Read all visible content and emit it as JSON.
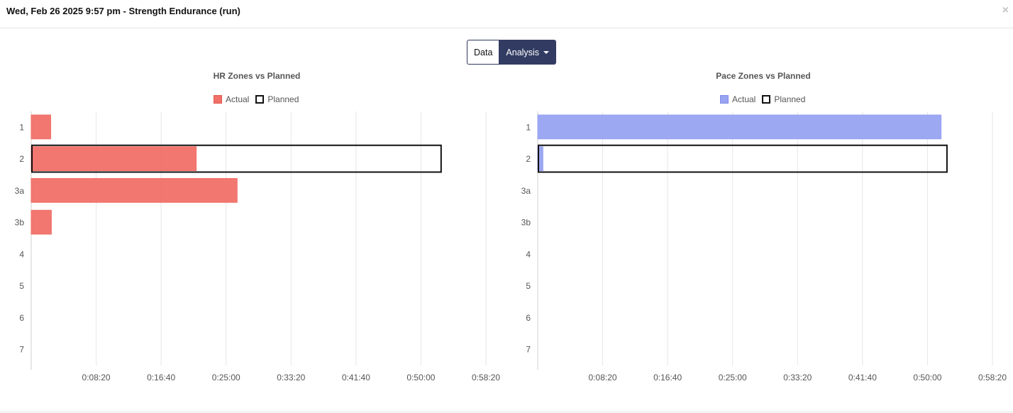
{
  "header": {
    "title": "Wed, Feb 26 2025 9:57 pm - Strength Endurance (run)"
  },
  "close_label": "×",
  "toggle": {
    "data_label": "Data",
    "analysis_label": "Analysis"
  },
  "chart_data": [
    {
      "type": "bar",
      "orientation": "horizontal",
      "title": "HR Zones vs Planned",
      "categories": [
        "1",
        "2",
        "3a",
        "3b",
        "4",
        "5",
        "6",
        "7"
      ],
      "xlim": [
        0,
        3500
      ],
      "x_ticks": [
        500,
        1000,
        1500,
        2000,
        2500,
        3000,
        3500
      ],
      "x_tick_labels": [
        "0:08:20",
        "0:16:40",
        "0:25:00",
        "0:33:20",
        "0:41:40",
        "0:50:00",
        "0:58:20"
      ],
      "legend": {
        "position": "top-center",
        "entries": [
          "Actual",
          "Planned"
        ]
      },
      "grid": true,
      "series": [
        {
          "name": "Actual",
          "color": "#f07068",
          "values": [
            150,
            1270,
            1585,
            155,
            0,
            0,
            0,
            0
          ]
        },
        {
          "name": "Planned",
          "color": "#111111",
          "values": [
            0,
            3155,
            0,
            0,
            0,
            0,
            0,
            0
          ]
        }
      ]
    },
    {
      "type": "bar",
      "orientation": "horizontal",
      "title": "Pace Zones vs Planned",
      "categories": [
        "1",
        "2",
        "3a",
        "3b",
        "4",
        "5",
        "6",
        "7"
      ],
      "xlim": [
        0,
        3500
      ],
      "x_ticks": [
        500,
        1000,
        1500,
        2000,
        2500,
        3000,
        3500
      ],
      "x_tick_labels": [
        "0:08:20",
        "0:16:40",
        "0:25:00",
        "0:33:20",
        "0:41:40",
        "0:50:00",
        "0:58:20"
      ],
      "legend": {
        "position": "top-center",
        "entries": [
          "Actual",
          "Planned"
        ]
      },
      "grid": true,
      "series": [
        {
          "name": "Actual",
          "color": "#98a3f2",
          "values": [
            3105,
            40,
            0,
            0,
            0,
            0,
            0,
            0
          ]
        },
        {
          "name": "Planned",
          "color": "#111111",
          "values": [
            0,
            3150,
            0,
            0,
            0,
            0,
            0,
            0
          ]
        }
      ]
    }
  ]
}
